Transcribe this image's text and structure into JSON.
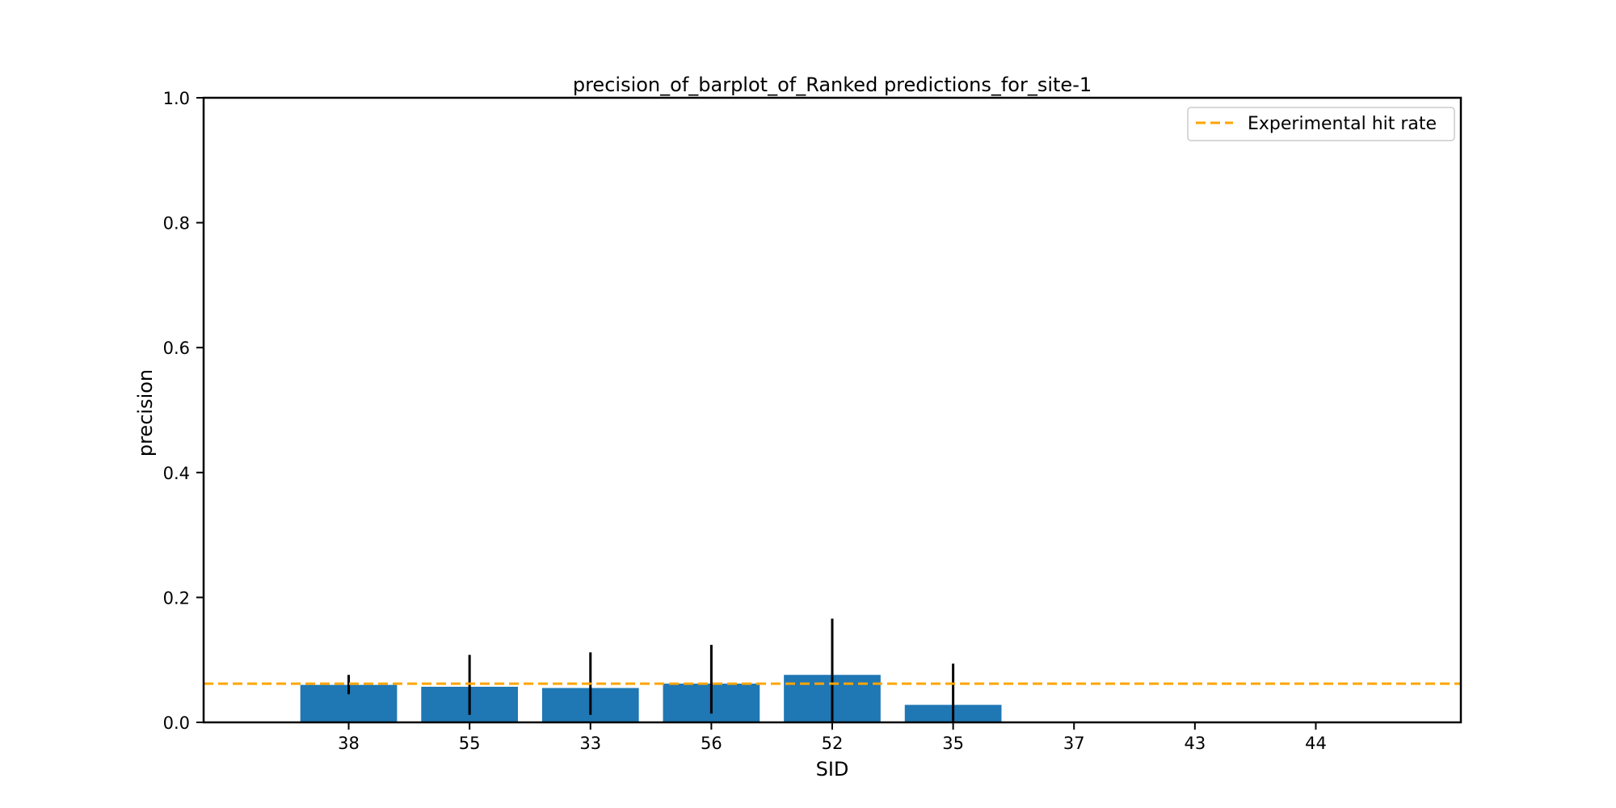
{
  "chart_data": {
    "type": "bar",
    "title": "precision_of_barplot_of_Ranked predictions_for_site-1",
    "xlabel": "SID",
    "ylabel": "precision",
    "ylim": [
      0,
      1.0
    ],
    "yticks": [
      "0.0",
      "0.2",
      "0.4",
      "0.6",
      "0.8",
      "1.0"
    ],
    "categories": [
      "38",
      "55",
      "33",
      "56",
      "52",
      "35",
      "37",
      "43",
      "44"
    ],
    "values": [
      0.06,
      0.057,
      0.055,
      0.062,
      0.076,
      0.028,
      0,
      0,
      0
    ],
    "error_low": [
      0.045,
      0.012,
      0.012,
      0.014,
      0.0,
      0.0,
      null,
      null,
      null
    ],
    "error_high": [
      0.076,
      0.108,
      0.112,
      0.124,
      0.166,
      0.094,
      null,
      null,
      null
    ],
    "reference_line": {
      "label": "Experimental hit rate",
      "value": 0.062,
      "style": "dashed",
      "color": "#ffa500"
    },
    "bar_color": "#1f77b4",
    "error_color": "#000000",
    "legend_position": "top-right",
    "grid": false
  }
}
